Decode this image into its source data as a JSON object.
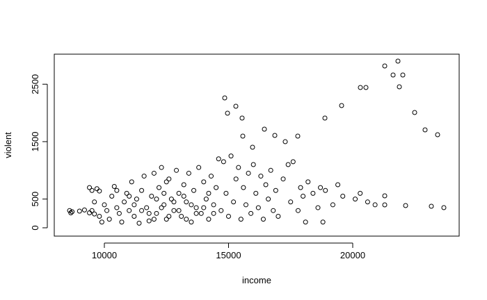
{
  "chart_data": {
    "type": "scatter",
    "xlabel": "income",
    "ylabel": "violent",
    "color": "#000000",
    "xlim": [
      7983,
      24286
    ],
    "ylim": [
      -145,
      3023
    ],
    "xticks": [
      10000,
      15000,
      20000
    ],
    "yticks": [
      0,
      500,
      1500,
      2500
    ],
    "x": [
      14846,
      14958,
      15294,
      15546,
      15574,
      15966,
      16443,
      16863,
      17283,
      17787,
      18880,
      19552,
      20308,
      20532,
      21289,
      21625,
      21821,
      21877,
      22017,
      22493,
      22913,
      23417,
      23165,
      23669,
      22129,
      21289,
      21289,
      8600,
      8650,
      8700,
      9000,
      9200,
      9400,
      9500,
      9600,
      9400,
      9500,
      9700,
      9800,
      9600,
      9800,
      9900,
      10000,
      10100,
      10200,
      10300,
      10400,
      10500,
      10600,
      10700,
      10800,
      10900,
      11000,
      11100,
      11200,
      11300,
      11400,
      11500,
      11600,
      11700,
      11800,
      11900,
      12000,
      12100,
      12200,
      12300,
      12400,
      12500,
      12600,
      12700,
      12800,
      12900,
      13000,
      13100,
      13200,
      13300,
      13400,
      13500,
      13600,
      13700,
      13800,
      13900,
      14000,
      14100,
      14200,
      14300,
      14400,
      14500,
      14600,
      14700,
      14800,
      14900,
      15000,
      15100,
      15200,
      15300,
      15400,
      15500,
      15600,
      15700,
      15800,
      15900,
      16000,
      16100,
      16200,
      16300,
      16400,
      16500,
      16600,
      16700,
      16800,
      16900,
      17000,
      17200,
      17400,
      17500,
      17600,
      17800,
      17900,
      18000,
      18100,
      18200,
      18400,
      18600,
      18700,
      18800,
      18900,
      19200,
      19400,
      19600,
      20100,
      20300,
      20600,
      20900,
      11200,
      11500,
      11800,
      12000,
      12100,
      12300,
      12400,
      12600,
      12800,
      13000,
      13200,
      13500,
      13700,
      14000,
      14200,
      10500,
      11000,
      12500,
      13300,
      14400
    ],
    "values": [
      2261,
      1995,
      2116,
      1911,
      1596,
      1403,
      1717,
      1608,
      1499,
      1596,
      1911,
      2128,
      2443,
      2443,
      2817,
      2660,
      2902,
      2455,
      2660,
      2007,
      1705,
      1620,
      375,
      351,
      387,
      556,
      399,
      300,
      260,
      280,
      290,
      310,
      260,
      300,
      240,
      700,
      650,
      680,
      640,
      450,
      200,
      100,
      400,
      300,
      150,
      550,
      720,
      650,
      250,
      100,
      450,
      600,
      300,
      800,
      200,
      500,
      80,
      650,
      900,
      350,
      120,
      550,
      950,
      250,
      700,
      1050,
      400,
      150,
      850,
      500,
      300,
      1000,
      600,
      200,
      750,
      450,
      950,
      100,
      650,
      350,
      1050,
      250,
      800,
      500,
      150,
      900,
      400,
      700,
      1200,
      300,
      1150,
      600,
      200,
      1250,
      450,
      850,
      1050,
      150,
      700,
      400,
      950,
      250,
      1100,
      600,
      350,
      900,
      150,
      750,
      500,
      1000,
      300,
      650,
      200,
      850,
      1100,
      450,
      1150,
      300,
      700,
      550,
      100,
      800,
      600,
      350,
      700,
      100,
      650,
      400,
      750,
      550,
      500,
      600,
      450,
      400,
      400,
      300,
      250,
      150,
      500,
      350,
      600,
      200,
      450,
      300,
      550,
      400,
      250,
      350,
      600,
      350,
      550,
      800,
      150,
      250
    ]
  }
}
